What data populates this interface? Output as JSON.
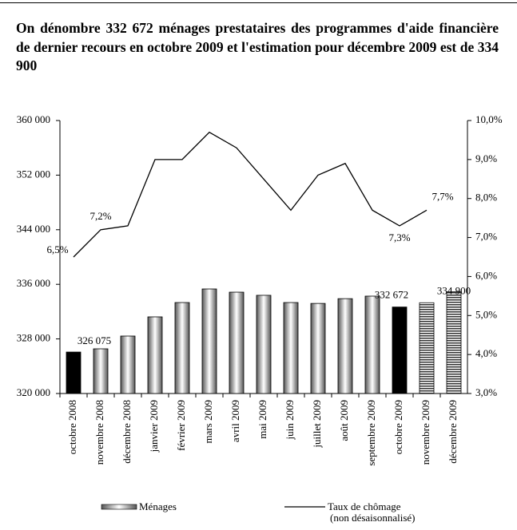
{
  "chart_data": {
    "type": "bar",
    "title": "On dénombre 332 672 ménages prestataires des programmes d'aide financière de dernier recours en octobre 2009 et l'estimation pour décembre 2009 est de 334 900",
    "categories": [
      "octobre 2008",
      "novembre 2008",
      "décembre 2008",
      "janvier 2009",
      "février 2009",
      "mars 2009",
      "avril 2009",
      "mai 2009",
      "juin 2009",
      "juillet 2009",
      "août 2009",
      "septembre 2009",
      "octobre 2009",
      "novembre 2009",
      "décembre 2009"
    ],
    "series": [
      {
        "name": "Ménages",
        "type": "bar",
        "color": "#888888",
        "fills": [
          "black",
          "gradient",
          "gradient",
          "gradient",
          "gradient",
          "gradient",
          "gradient",
          "gradient",
          "gradient",
          "gradient",
          "gradient",
          "gradient",
          "black",
          "striped",
          "striped"
        ],
        "values": [
          326075,
          326550,
          328420,
          331230,
          333330,
          335320,
          334850,
          334390,
          333330,
          333200,
          333900,
          334270,
          332672,
          333300,
          334900
        ],
        "value_labels": [
          "326 075",
          null,
          null,
          null,
          null,
          null,
          null,
          null,
          null,
          null,
          null,
          null,
          "332 672",
          null,
          "334 900"
        ]
      },
      {
        "name": "Taux de chômage",
        "name_note": "(non désaisonnalisé)",
        "type": "line",
        "axis": "y2",
        "color": "#000000",
        "values": [
          6.5,
          7.2,
          7.3,
          9.0,
          9.0,
          9.7,
          9.3,
          8.5,
          7.7,
          8.6,
          8.9,
          7.7,
          7.3,
          7.7,
          null
        ],
        "value_labels": [
          "6,5%",
          "7,2%",
          null,
          null,
          null,
          null,
          null,
          null,
          null,
          null,
          null,
          null,
          "7,3%",
          "7,7%",
          null
        ]
      }
    ],
    "ylim": [
      320000,
      360000
    ],
    "yticks": [
      {
        "value": 320000,
        "label": "320 000"
      },
      {
        "value": 328000,
        "label": "328 000"
      },
      {
        "value": 336000,
        "label": "336 000"
      },
      {
        "value": 344000,
        "label": "344 000"
      },
      {
        "value": 352000,
        "label": "352 000"
      },
      {
        "value": 360000,
        "label": "360 000"
      }
    ],
    "y2lim": [
      3,
      10
    ],
    "y2ticks": [
      {
        "value": 3,
        "label": "3,0%"
      },
      {
        "value": 4,
        "label": "4,0%"
      },
      {
        "value": 5,
        "label": "5,0%"
      },
      {
        "value": 6,
        "label": "6,0%"
      },
      {
        "value": 7,
        "label": "7,0%"
      },
      {
        "value": 8,
        "label": "8,0%"
      },
      {
        "value": 9,
        "label": "9,0%"
      },
      {
        "value": 10,
        "label": "10,0%"
      }
    ]
  }
}
